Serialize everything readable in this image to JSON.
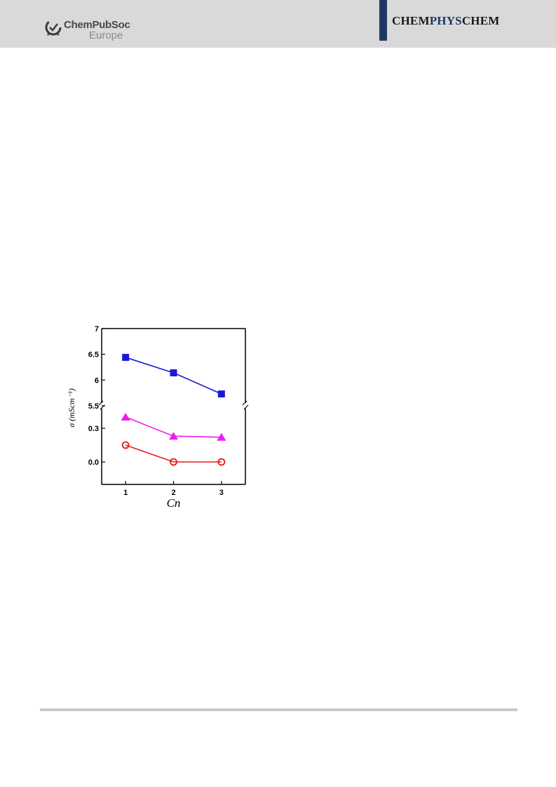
{
  "header": {
    "brand_name": "ChemPubSoc",
    "brand_sub": "Europe",
    "journal_part1": "CHEM",
    "journal_part2": "PHYS",
    "journal_part3": "CHEM",
    "accent_color": "#1e3866"
  },
  "chart_data": {
    "type": "line",
    "title": "",
    "xlabel": "Cn",
    "ylabel": "σ (mScm⁻¹)",
    "x": [
      1,
      2,
      3
    ],
    "x_ticks": [
      "1",
      "2",
      "3"
    ],
    "broken_y_axis": true,
    "y_lower_range": [
      -0.2,
      0.5
    ],
    "y_upper_range": [
      5.5,
      7.0
    ],
    "y_ticks_lower": [
      "0.0",
      "0.3"
    ],
    "y_ticks_upper": [
      "5.5",
      "6",
      "6.5",
      "7"
    ],
    "series": [
      {
        "color": "#1a1ad6",
        "marker": "square",
        "values": [
          6.44,
          6.14,
          5.73
        ]
      },
      {
        "color": "#ee1cee",
        "marker": "triangle",
        "values": [
          0.4,
          0.23,
          0.22
        ]
      },
      {
        "color": "#e31b1b",
        "marker": "open-circle",
        "values": [
          0.15,
          0.0,
          0.0
        ]
      }
    ]
  }
}
